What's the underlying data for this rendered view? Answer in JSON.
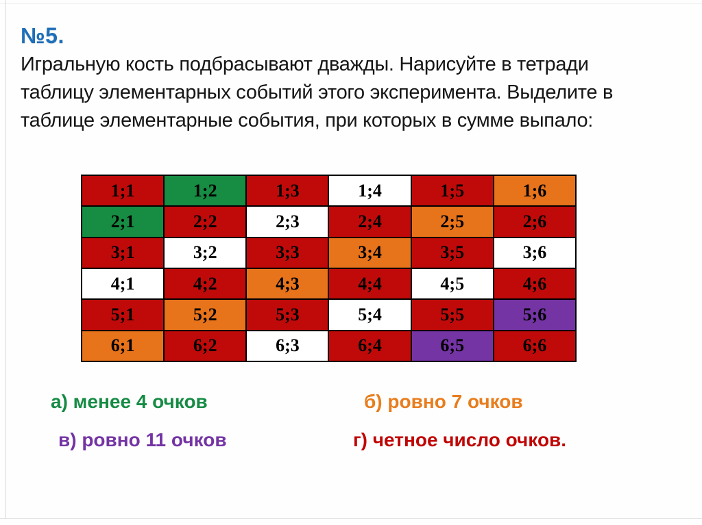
{
  "slide": {
    "title": "№5.",
    "problem_lines": [
      "Игральную кость подбрасывают дважды. Нарисуйте в тетради",
      "таблицу элементарных событий этого эксперимента. Выделите в",
      "таблице элементарные события, при которых в сумме выпало:"
    ]
  },
  "colors": {
    "title_blue": "#1F6FB8",
    "red": "#C00A0A",
    "green": "#178C43",
    "orange": "#E7731B",
    "purple": "#7434A4",
    "white": "#FFFFFF",
    "border_black": "#000000"
  },
  "table": {
    "rows": [
      [
        {
          "label": "1;1",
          "color": "red"
        },
        {
          "label": "1;2",
          "color": "green"
        },
        {
          "label": "1;3",
          "color": "red"
        },
        {
          "label": "1;4",
          "color": "white"
        },
        {
          "label": "1;5",
          "color": "red"
        },
        {
          "label": "1;6",
          "color": "orange"
        }
      ],
      [
        {
          "label": "2;1",
          "color": "green"
        },
        {
          "label": "2;2",
          "color": "red"
        },
        {
          "label": "2;3",
          "color": "white"
        },
        {
          "label": "2;4",
          "color": "red"
        },
        {
          "label": "2;5",
          "color": "orange"
        },
        {
          "label": "2;6",
          "color": "red"
        }
      ],
      [
        {
          "label": "3;1",
          "color": "red"
        },
        {
          "label": "3;2",
          "color": "white"
        },
        {
          "label": "3;3",
          "color": "red"
        },
        {
          "label": "3;4",
          "color": "orange"
        },
        {
          "label": "3;5",
          "color": "red"
        },
        {
          "label": "3;6",
          "color": "white"
        }
      ],
      [
        {
          "label": "4;1",
          "color": "white"
        },
        {
          "label": "4;2",
          "color": "red"
        },
        {
          "label": "4;3",
          "color": "orange"
        },
        {
          "label": "4;4",
          "color": "red"
        },
        {
          "label": "4;5",
          "color": "white"
        },
        {
          "label": "4;6",
          "color": "red"
        }
      ],
      [
        {
          "label": "5;1",
          "color": "red"
        },
        {
          "label": "5;2",
          "color": "orange"
        },
        {
          "label": "5;3",
          "color": "red"
        },
        {
          "label": "5;4",
          "color": "white"
        },
        {
          "label": "5;5",
          "color": "red"
        },
        {
          "label": "5;6",
          "color": "purple"
        }
      ],
      [
        {
          "label": "6;1",
          "color": "orange"
        },
        {
          "label": "6;2",
          "color": "red"
        },
        {
          "label": "6;3",
          "color": "white"
        },
        {
          "label": "6;4",
          "color": "red"
        },
        {
          "label": "6;5",
          "color": "purple"
        },
        {
          "label": "6;6",
          "color": "red"
        }
      ]
    ]
  },
  "options": [
    {
      "id": "a",
      "label": "а) менее 4 очков",
      "color": "#168B44"
    },
    {
      "id": "b",
      "label": "б) ровно 7 очков",
      "color": "#E87D1E"
    },
    {
      "id": "v",
      "label": "в) ровно 11 очков",
      "color": "#7434A4"
    },
    {
      "id": "g",
      "label": "г) четное число очков.",
      "color": "#C00505"
    }
  ]
}
